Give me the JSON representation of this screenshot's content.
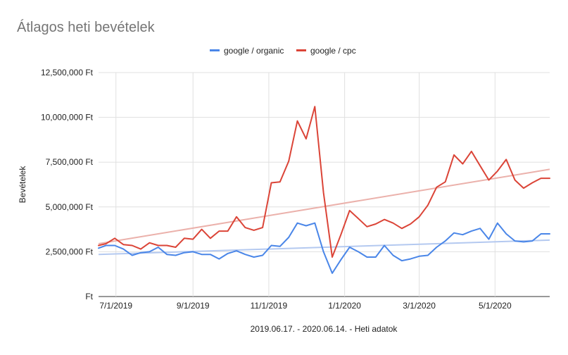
{
  "chart_data": {
    "type": "line",
    "title": "Átlagos heti bevételek",
    "xlabel": "2019.06.17. - 2020.06.14. - Heti adatok",
    "ylabel": "Bevételek",
    "ylim": [
      0,
      12500000
    ],
    "yticks": [
      {
        "value": 0,
        "label": "Ft"
      },
      {
        "value": 2500000,
        "label": "2,500,000 Ft"
      },
      {
        "value": 5000000,
        "label": "5,000,000 Ft"
      },
      {
        "value": 7500000,
        "label": "7,500,000 Ft"
      },
      {
        "value": 10000000,
        "label": "10,000,000 Ft"
      },
      {
        "value": 12500000,
        "label": "12,500,000 Ft"
      }
    ],
    "xrange": [
      "2019-06-17",
      "2020-06-14"
    ],
    "xticks": [
      {
        "date": "2019-07-01",
        "label": "7/1/2019"
      },
      {
        "date": "2019-09-01",
        "label": "9/1/2019"
      },
      {
        "date": "2019-11-01",
        "label": "11/1/2019"
      },
      {
        "date": "2020-01-01",
        "label": "1/1/2020"
      },
      {
        "date": "2020-03-01",
        "label": "3/1/2020"
      },
      {
        "date": "2020-05-01",
        "label": "5/1/2020"
      }
    ],
    "grid": true,
    "legend_position": "top-center",
    "x": [
      "2019-06-17",
      "2019-06-23",
      "2019-06-30",
      "2019-07-07",
      "2019-07-14",
      "2019-07-21",
      "2019-07-28",
      "2019-08-04",
      "2019-08-11",
      "2019-08-18",
      "2019-08-25",
      "2019-09-01",
      "2019-09-08",
      "2019-09-15",
      "2019-09-22",
      "2019-09-29",
      "2019-10-06",
      "2019-10-13",
      "2019-10-20",
      "2019-10-27",
      "2019-11-03",
      "2019-11-10",
      "2019-11-17",
      "2019-11-24",
      "2019-12-01",
      "2019-12-08",
      "2019-12-15",
      "2019-12-22",
      "2019-12-29",
      "2020-01-05",
      "2020-01-12",
      "2020-01-19",
      "2020-01-26",
      "2020-02-02",
      "2020-02-09",
      "2020-02-16",
      "2020-02-23",
      "2020-03-01",
      "2020-03-08",
      "2020-03-15",
      "2020-03-22",
      "2020-03-29",
      "2020-04-05",
      "2020-04-12",
      "2020-04-19",
      "2020-04-26",
      "2020-05-03",
      "2020-05-10",
      "2020-05-17",
      "2020-05-24",
      "2020-05-31",
      "2020-06-07",
      "2020-06-14"
    ],
    "series": [
      {
        "name": "google / organic",
        "color": "#4a86e8",
        "trend_color": "#b4c9f0",
        "values": [
          2700000,
          2850000,
          2850000,
          2650000,
          2300000,
          2450000,
          2500000,
          2750000,
          2350000,
          2300000,
          2450000,
          2500000,
          2350000,
          2350000,
          2100000,
          2400000,
          2550000,
          2350000,
          2200000,
          2300000,
          2850000,
          2800000,
          3300000,
          4100000,
          3950000,
          4100000,
          2500000,
          1300000,
          2050000,
          2750000,
          2500000,
          2200000,
          2200000,
          2850000,
          2300000,
          2000000,
          2100000,
          2250000,
          2300000,
          2750000,
          3100000,
          3550000,
          3450000,
          3650000,
          3800000,
          3200000,
          4100000,
          3500000,
          3100000,
          3050000,
          3100000,
          3500000,
          3500000
        ],
        "trend": [
          2350000,
          3150000
        ]
      },
      {
        "name": "google / cpc",
        "color": "#db4437",
        "trend_color": "#ebb1ab",
        "values": [
          2850000,
          2950000,
          3250000,
          2900000,
          2850000,
          2650000,
          3000000,
          2850000,
          2850000,
          2750000,
          3250000,
          3200000,
          3750000,
          3250000,
          3650000,
          3650000,
          4450000,
          3850000,
          3700000,
          3850000,
          6350000,
          6400000,
          7550000,
          9800000,
          8800000,
          10600000,
          5800000,
          2200000,
          3450000,
          4800000,
          4350000,
          3900000,
          4050000,
          4300000,
          4100000,
          3800000,
          4050000,
          4450000,
          5100000,
          6100000,
          6400000,
          7900000,
          7400000,
          8100000,
          7300000,
          6500000,
          7000000,
          7650000,
          6500000,
          6050000,
          6350000,
          6600000,
          6600000
        ],
        "trend": [
          2950000,
          7100000
        ]
      }
    ]
  }
}
